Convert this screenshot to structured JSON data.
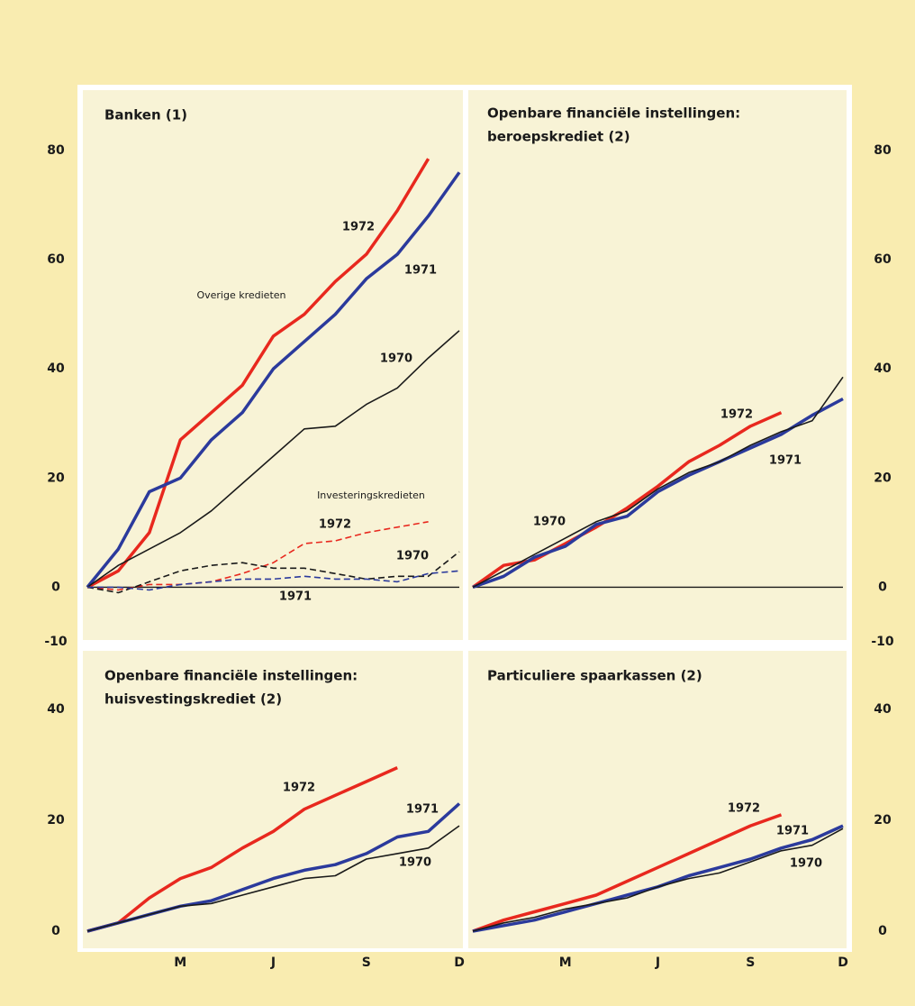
{
  "chart_data": [
    {
      "type": "line",
      "title": [
        "Banken (1)"
      ],
      "annotations": [
        "Overige kredieten",
        "Investeringskredieten"
      ],
      "x": [
        0,
        1,
        2,
        3,
        4,
        5,
        6,
        7,
        8,
        9,
        10,
        11,
        12
      ],
      "xlim": [
        0,
        12
      ],
      "ylim": [
        -10,
        80
      ],
      "yticks": [
        -10,
        0,
        20,
        40,
        60,
        80
      ],
      "ytick_side": "left",
      "zero_line": true,
      "series": [
        {
          "name": "1972",
          "color": "#e8281e",
          "dash": false,
          "values": [
            0,
            3,
            10,
            27,
            32,
            37,
            46,
            50,
            56,
            61,
            69,
            78.5,
            null
          ]
        },
        {
          "name": "1971",
          "color": "#2b3a9c",
          "dash": false,
          "values": [
            0,
            7,
            17.5,
            20,
            27,
            32,
            40,
            45,
            50,
            56.5,
            61,
            68,
            76
          ]
        },
        {
          "name": "1970",
          "color": "#1a1a1a",
          "dash": false,
          "values": [
            0,
            4,
            7,
            10,
            14,
            19,
            24,
            29,
            29.5,
            33.5,
            36.5,
            42,
            47
          ]
        },
        {
          "name": "1972",
          "color": "#e8281e",
          "dash": true,
          "values": [
            0,
            -0.5,
            0.5,
            0.5,
            1,
            2.5,
            4.5,
            8,
            8.5,
            10,
            11,
            12,
            null
          ]
        },
        {
          "name": "1970",
          "color": "#1a1a1a",
          "dash": true,
          "values": [
            0,
            -1,
            1,
            3,
            4,
            4.5,
            3.5,
            3.5,
            2.5,
            1.5,
            2,
            2,
            6.5
          ]
        },
        {
          "name": "1971",
          "color": "#2b3a9c",
          "dash": true,
          "values": [
            0,
            0,
            -0.5,
            0.5,
            1,
            1.5,
            1.5,
            2,
            1.5,
            1.5,
            1,
            2.5,
            3
          ]
        }
      ]
    },
    {
      "type": "line",
      "title": [
        "Openbare financiële instellingen:",
        "beroepskrediet (2)"
      ],
      "x": [
        0,
        1,
        2,
        3,
        4,
        5,
        6,
        7,
        8,
        9,
        10,
        11,
        12
      ],
      "xlim": [
        0,
        12
      ],
      "ylim": [
        -10,
        80
      ],
      "yticks": [
        -10,
        0,
        20,
        40,
        60,
        80
      ],
      "ytick_side": "right",
      "zero_line": true,
      "series": [
        {
          "name": "1972",
          "color": "#e8281e",
          "dash": false,
          "values": [
            0,
            4,
            5,
            8,
            11,
            14.5,
            18.5,
            23,
            26,
            29.5,
            32,
            null,
            null
          ]
        },
        {
          "name": "1971",
          "color": "#2b3a9c",
          "dash": false,
          "values": [
            0,
            2,
            5.5,
            7.5,
            11.5,
            13,
            17.5,
            20.5,
            23,
            25.5,
            28,
            31.5,
            34.5
          ]
        },
        {
          "name": "1970",
          "color": "#1a1a1a",
          "dash": false,
          "values": [
            0,
            3,
            6,
            9,
            12,
            14,
            18,
            21,
            23,
            26,
            28.5,
            30.5,
            38.5
          ]
        }
      ]
    },
    {
      "type": "line",
      "title": [
        "Openbare financiële instellingen:",
        "huisvestingskrediet (2)"
      ],
      "x": [
        0,
        1,
        2,
        3,
        4,
        5,
        6,
        7,
        8,
        9,
        10,
        11,
        12
      ],
      "xlim": [
        0,
        12
      ],
      "xticks": [
        {
          "value": 3,
          "label": "M"
        },
        {
          "value": 6,
          "label": "J"
        },
        {
          "value": 9,
          "label": "S"
        },
        {
          "value": 12,
          "label": "D"
        }
      ],
      "ylim": [
        0,
        40
      ],
      "yticks": [
        0,
        20,
        40
      ],
      "ytick_side": "left",
      "zero_line": false,
      "series": [
        {
          "name": "1972",
          "color": "#e8281e",
          "dash": false,
          "values": [
            0,
            1.5,
            6,
            9.5,
            11.5,
            15,
            18,
            22,
            24.5,
            27,
            29.5,
            null,
            null
          ]
        },
        {
          "name": "1971",
          "color": "#2b3a9c",
          "dash": false,
          "values": [
            0,
            1.5,
            3,
            4.5,
            5.5,
            7.5,
            9.5,
            11,
            12,
            14,
            17,
            18,
            23
          ]
        },
        {
          "name": "1970",
          "color": "#1a1a1a",
          "dash": false,
          "values": [
            0,
            1.5,
            3,
            4.5,
            5,
            6.5,
            8,
            9.5,
            10,
            13,
            14,
            15,
            19
          ]
        }
      ]
    },
    {
      "type": "line",
      "title": [
        "Particuliere spaarkassen (2)"
      ],
      "x": [
        0,
        1,
        2,
        3,
        4,
        5,
        6,
        7,
        8,
        9,
        10,
        11,
        12
      ],
      "xlim": [
        0,
        12
      ],
      "xticks": [
        {
          "value": 3,
          "label": "M"
        },
        {
          "value": 6,
          "label": "J"
        },
        {
          "value": 9,
          "label": "S"
        },
        {
          "value": 12,
          "label": "D"
        }
      ],
      "ylim": [
        0,
        40
      ],
      "yticks": [
        0,
        20,
        40
      ],
      "ytick_side": "right",
      "zero_line": false,
      "series": [
        {
          "name": "1972",
          "color": "#e8281e",
          "dash": false,
          "values": [
            0,
            2,
            3.5,
            5,
            6.5,
            9,
            11.5,
            14,
            16.5,
            19,
            21,
            null,
            null
          ]
        },
        {
          "name": "1971",
          "color": "#2b3a9c",
          "dash": false,
          "values": [
            0,
            1,
            2,
            3.5,
            5,
            6.5,
            8,
            10,
            11.5,
            13,
            15,
            16.5,
            19
          ]
        },
        {
          "name": "1970",
          "color": "#1a1a1a",
          "dash": false,
          "values": [
            0,
            1.5,
            2.5,
            4,
            5,
            6,
            8,
            9.5,
            10.5,
            12.5,
            14.5,
            15.5,
            18.5
          ]
        }
      ]
    }
  ]
}
